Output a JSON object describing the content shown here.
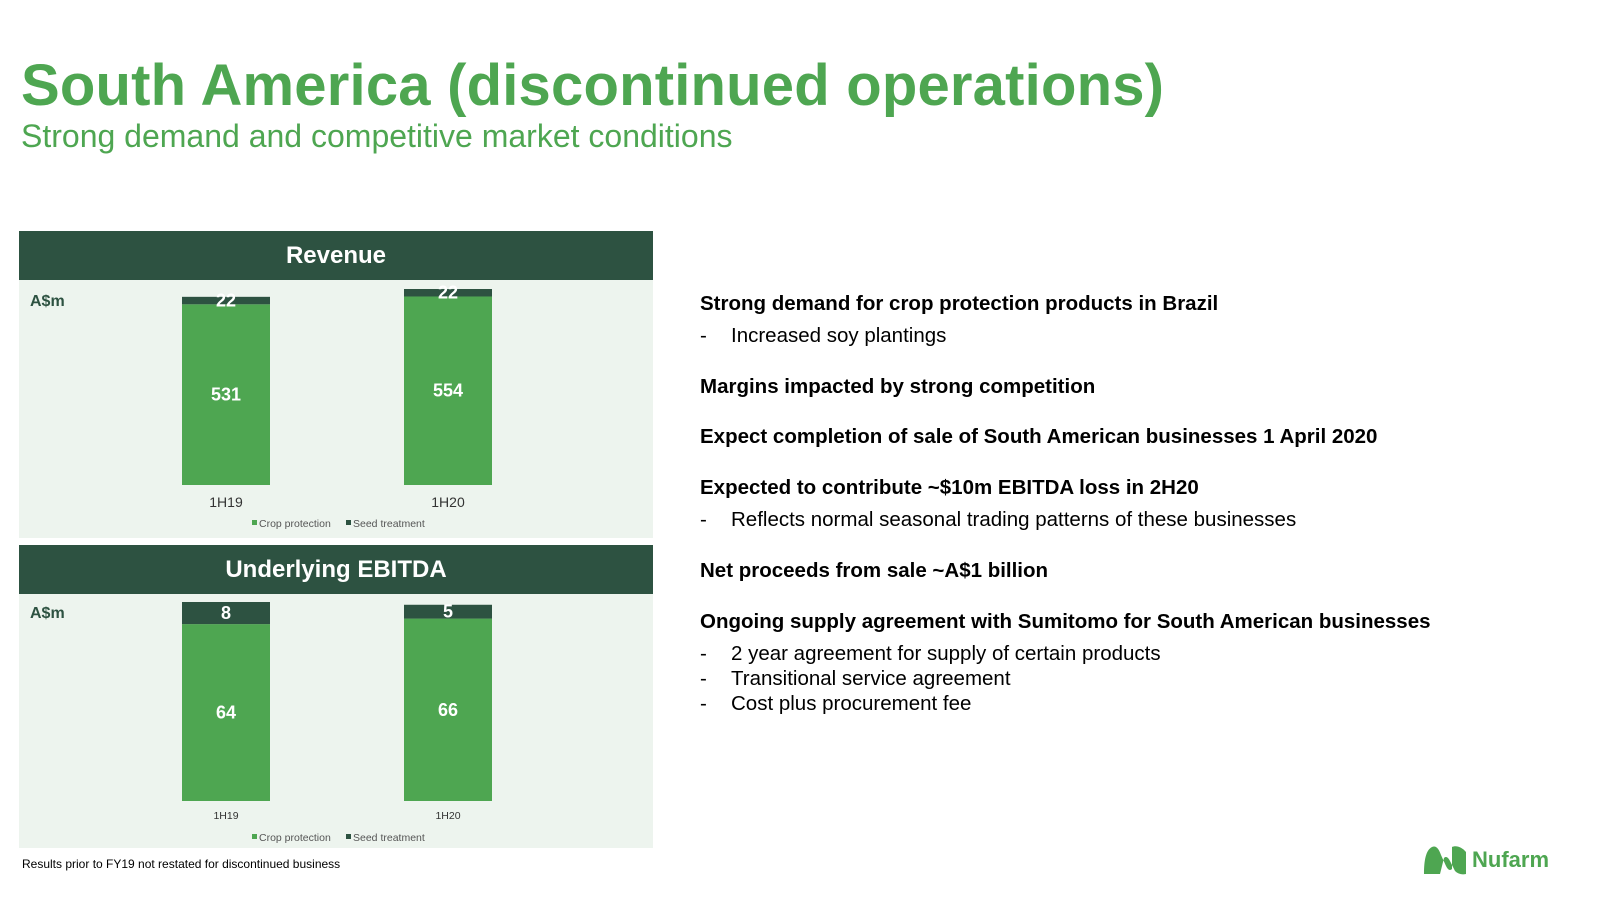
{
  "header": {
    "title": "South America (discontinued operations)",
    "subtitle": "Strong demand and competitive market conditions"
  },
  "colors": {
    "accent_green": "#4ea651",
    "dark_green": "#2d5241",
    "panel_bg": "#edf4ee"
  },
  "chart_data": [
    {
      "type": "bar",
      "stacked": true,
      "title": "Revenue",
      "unit_label": "A$m",
      "categories": [
        "1H19",
        "1H20"
      ],
      "series": [
        {
          "name": "Crop protection",
          "values": [
            531,
            554
          ],
          "color": "#4ea651"
        },
        {
          "name": "Seed treatment",
          "values": [
            22,
            22
          ],
          "color": "#2d5241"
        }
      ],
      "legend": [
        "Crop protection",
        "Seed treatment"
      ],
      "legend_position": "bottom",
      "grid": false
    },
    {
      "type": "bar",
      "stacked": true,
      "title": "Underlying EBITDA",
      "unit_label": "A$m",
      "categories": [
        "1H19",
        "1H20"
      ],
      "series": [
        {
          "name": "Crop protection",
          "values": [
            64,
            66
          ],
          "color": "#4ea651"
        },
        {
          "name": "Seed treatment",
          "values": [
            8,
            5
          ],
          "color": "#2d5241"
        }
      ],
      "legend": [
        "Crop protection",
        "Seed treatment"
      ],
      "legend_position": "bottom",
      "grid": false
    }
  ],
  "commentary": [
    {
      "heading": "Strong demand for crop protection products in Brazil",
      "items": [
        "Increased soy plantings"
      ]
    },
    {
      "heading": "Margins impacted by strong competition",
      "items": []
    },
    {
      "heading": "Expect completion of sale of South American businesses 1 April 2020",
      "items": []
    },
    {
      "heading": "Expected to contribute ~$10m EBITDA loss in 2H20",
      "items": [
        "Reflects normal seasonal trading patterns of these businesses"
      ]
    },
    {
      "heading": "Net proceeds from sale ~A$1 billion",
      "items": []
    },
    {
      "heading": "Ongoing supply agreement with Sumitomo for South American businesses",
      "items": [
        "2 year agreement for supply of certain products",
        "Transitional service agreement",
        "Cost plus procurement fee"
      ]
    }
  ],
  "bullet_dash": "-",
  "footnote": "Results prior to FY19 not restated for discontinued business",
  "logo": {
    "text": "Nufarm",
    "icon": "nufarm-leaf-icon"
  }
}
